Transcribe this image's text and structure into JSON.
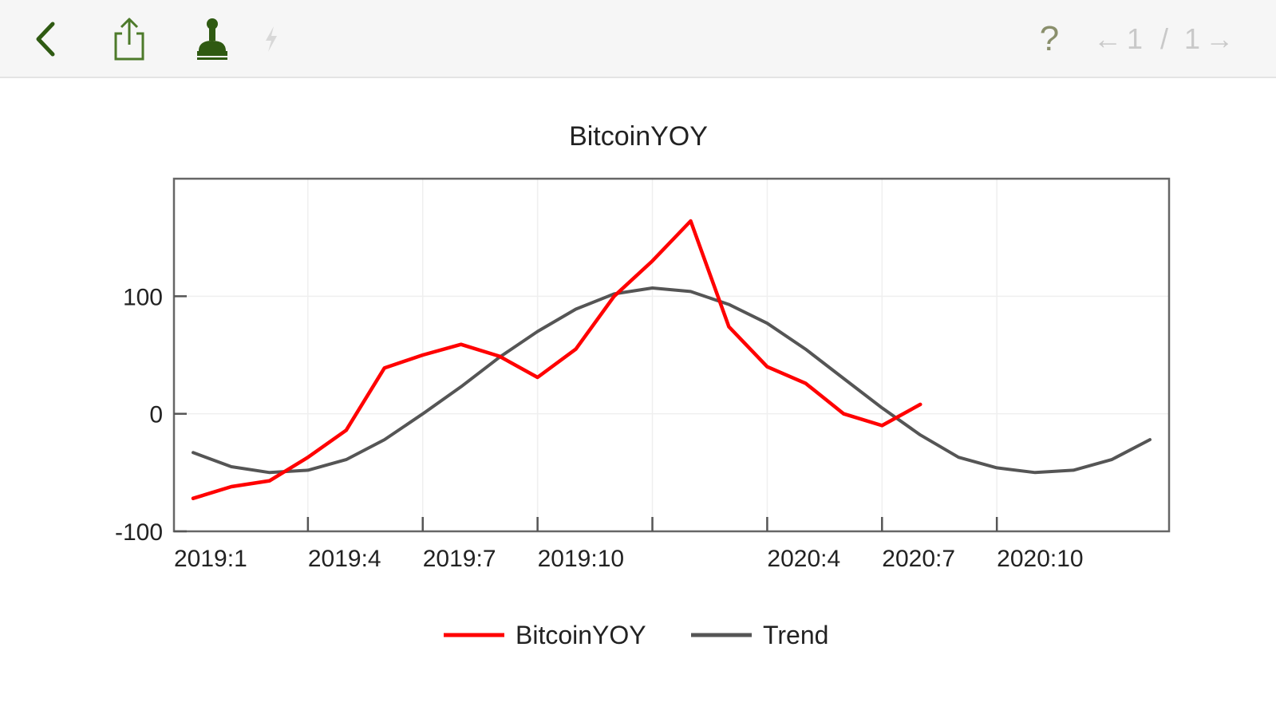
{
  "toolbar": {
    "back_icon": "chevron-left-icon",
    "share_icon": "share-icon",
    "stamp_icon": "stamp-icon",
    "bolt_icon": "lightning-icon",
    "help_label": "?",
    "pager": {
      "prev_arrow": "←",
      "current": "1",
      "separator": "/",
      "total": "1",
      "next_arrow": "→"
    },
    "icon_color": "#2f5a12"
  },
  "chart_data": {
    "type": "line",
    "title": "BitcoinYOY",
    "xlabel": "",
    "ylabel": "",
    "x_start": "2019:1",
    "x_tick_labels": [
      {
        "label": "2019:1",
        "x": 0
      },
      {
        "label": "2019:4",
        "x": 3
      },
      {
        "label": "2019:7",
        "x": 6
      },
      {
        "label": "2019:10",
        "x": 9
      },
      {
        "label": "2020:4",
        "x": 15
      },
      {
        "label": "2020:7",
        "x": 18
      },
      {
        "label": "2020:10",
        "x": 21
      }
    ],
    "x_tick_marks": [
      3,
      6,
      9,
      12,
      15,
      18,
      21
    ],
    "xlim": [
      -0.5,
      25.5
    ],
    "ylim": [
      -100,
      200
    ],
    "y_ticks": [
      -100,
      0,
      100
    ],
    "grid": true,
    "legend_position": "bottom-center",
    "series": [
      {
        "name": "BitcoinYOY",
        "color": "#ff0000",
        "values": [
          -72,
          -62,
          -57,
          -37,
          -14,
          39,
          50,
          59,
          49,
          31,
          55,
          100,
          130,
          164,
          74,
          40,
          26,
          0,
          -10,
          8
        ]
      },
      {
        "name": "Trend",
        "color": "#555555",
        "values": [
          -33,
          -45,
          -50,
          -48,
          -39,
          -22,
          0,
          23,
          48,
          70,
          89,
          102,
          107,
          104,
          93,
          77,
          55,
          30,
          5,
          -18,
          -37,
          -46,
          -50,
          -48,
          -39,
          -22
        ]
      }
    ]
  }
}
